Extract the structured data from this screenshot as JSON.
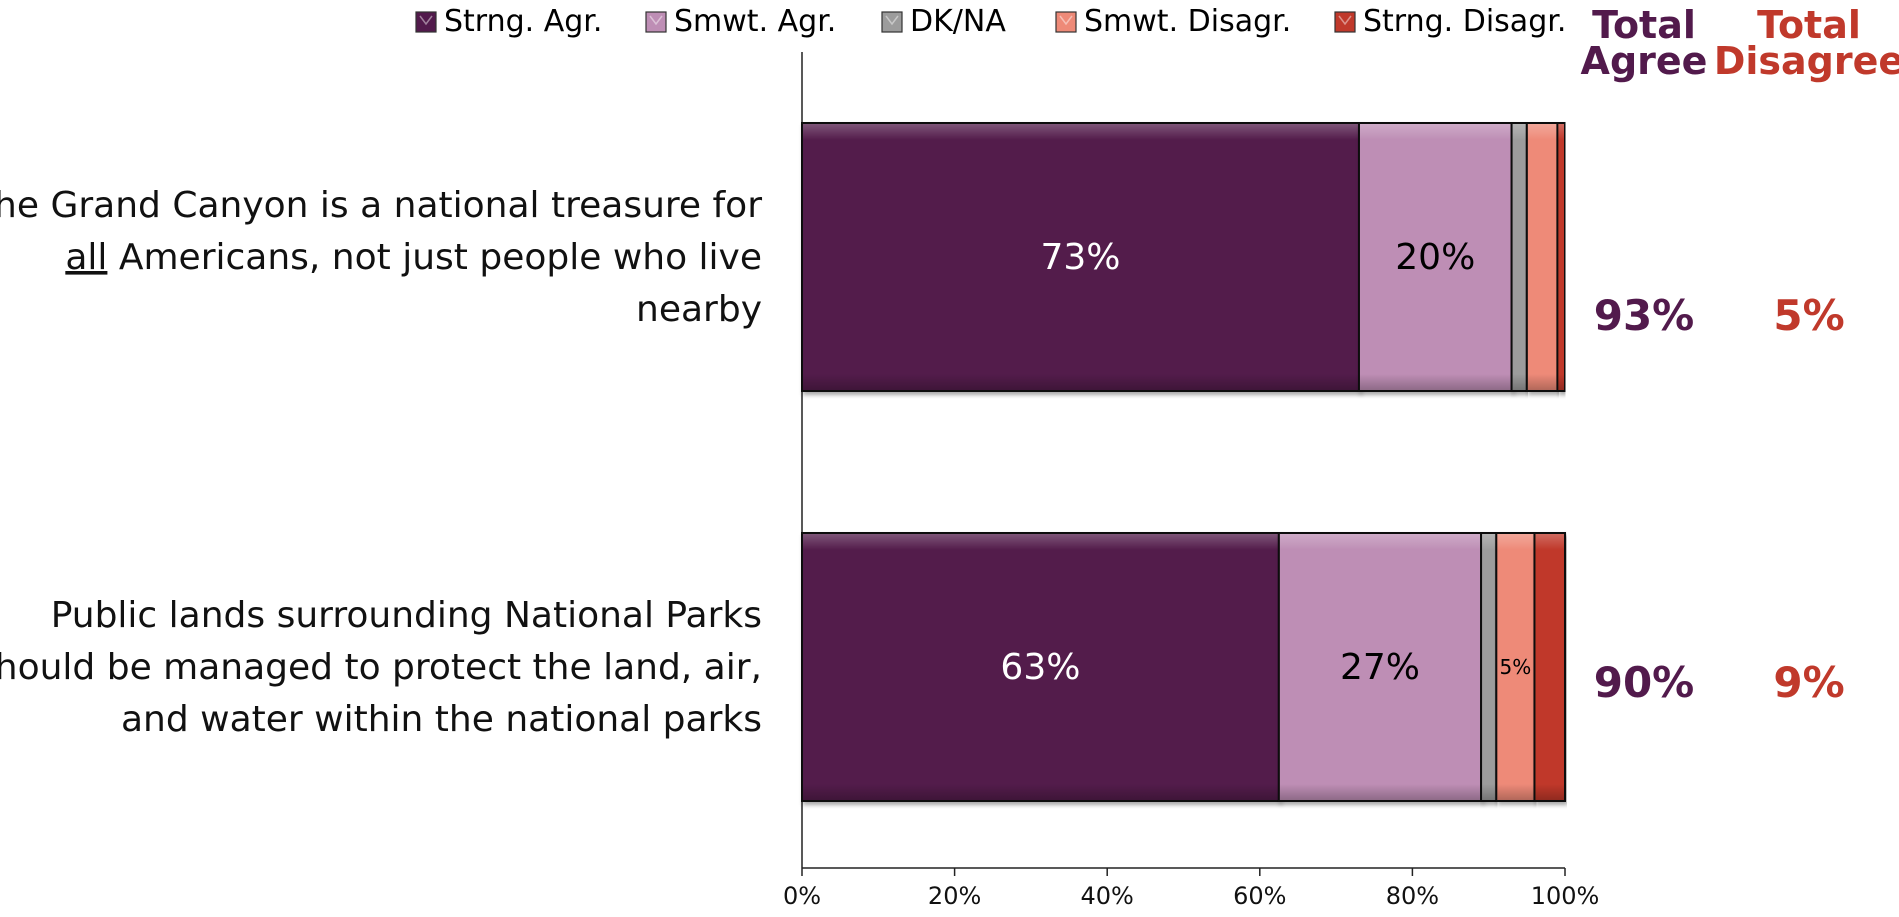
{
  "chart_data": {
    "type": "bar",
    "orientation": "horizontal",
    "stacked": true,
    "legend_position": "top",
    "categories": [
      "The Grand Canyon is a national treasure for all Americans, not just people who live nearby",
      "Public lands surrounding National Parks should be managed to protect the land, air, and water within the national parks"
    ],
    "category_lines": [
      [
        [
          {
            "t": "The Grand Canyon is a national treasure for"
          }
        ],
        [
          {
            "t": "all",
            "u": true
          },
          {
            "t": " Americans, not just people who live"
          }
        ],
        [
          {
            "t": "nearby"
          }
        ]
      ],
      [
        [
          {
            "t": "Public lands surrounding National Parks"
          }
        ],
        [
          {
            "t": "should be managed to protect the land, air,"
          }
        ],
        [
          {
            "t": "and water within the national parks"
          }
        ]
      ]
    ],
    "series": [
      {
        "name": "Strng. Agr.",
        "values": [
          73,
          62.5
        ],
        "color": "#521A4C",
        "labels": [
          "73%",
          "63%"
        ],
        "label_color": "#ffffff"
      },
      {
        "name": "Smwt. Agr.",
        "values": [
          20,
          26.5
        ],
        "color": "#BE8EB5",
        "labels": [
          "20%",
          "27%"
        ],
        "label_color": "#000000"
      },
      {
        "name": "DK/NA",
        "values": [
          2,
          2
        ],
        "color": "#9C9C9C",
        "labels": [
          "",
          ""
        ],
        "label_color": "#000000"
      },
      {
        "name": "Smwt. Disagr.",
        "values": [
          4,
          5
        ],
        "color": "#EE8A78",
        "labels": [
          "",
          "5%"
        ],
        "label_color": "#000000"
      },
      {
        "name": "Strng. Disagr.",
        "values": [
          1,
          4
        ],
        "color": "#C0392B",
        "labels": [
          "",
          ""
        ],
        "label_color": "#000000"
      }
    ],
    "xlim": [
      0,
      100
    ],
    "x_ticks": [
      "0%",
      "20%",
      "40%",
      "60%",
      "80%",
      "100%"
    ],
    "totals": {
      "agree_header": [
        "Total",
        "Agree"
      ],
      "disagree_header": [
        "Total",
        "Disagree"
      ],
      "agree_values": [
        "93%",
        "90%"
      ],
      "disagree_values": [
        "5%",
        "9%"
      ],
      "agree_color": "#521A4C",
      "disagree_color": "#C0392B"
    }
  }
}
